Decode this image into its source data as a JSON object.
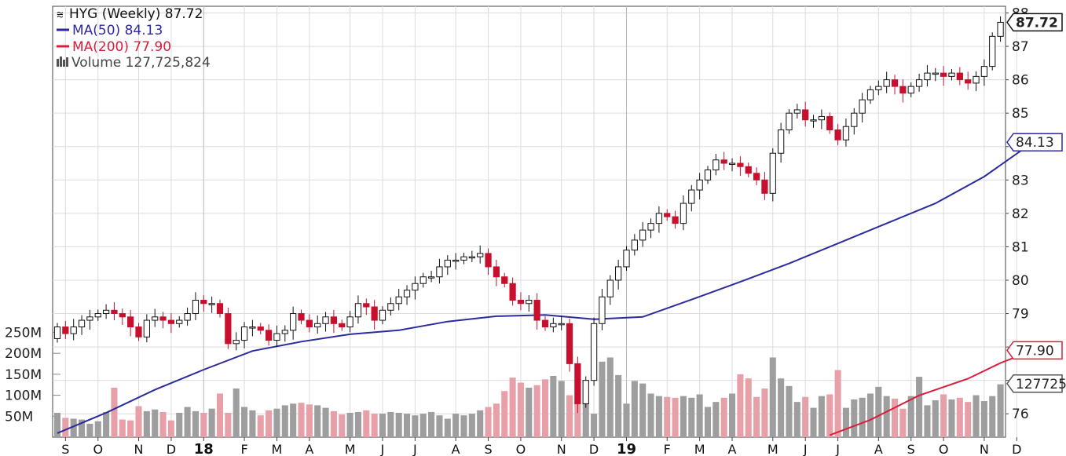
{
  "chart_data": {
    "type": "candlestick",
    "ticker": "HYG",
    "interval_label": "HYG (Weekly)",
    "last_price": 87.72,
    "last_price_label": "87.72",
    "grid": true,
    "price_axis": {
      "side": "right",
      "range": [
        75.3,
        88.2
      ],
      "ticks": [
        76,
        77,
        78,
        79,
        80,
        81,
        82,
        83,
        84,
        85,
        86,
        87,
        88
      ]
    },
    "volume_axis": {
      "side": "left",
      "range": [
        0,
        350000000
      ],
      "ticks": [
        {
          "value": 50000000,
          "label": "50M"
        },
        {
          "value": 100000000,
          "label": "100M"
        },
        {
          "value": 150000000,
          "label": "150M"
        },
        {
          "value": 200000000,
          "label": "200M"
        },
        {
          "value": 250000000,
          "label": "250M"
        }
      ]
    },
    "x_labels": [
      {
        "index": 1,
        "label": "S",
        "bold": false
      },
      {
        "index": 5,
        "label": "O",
        "bold": false
      },
      {
        "index": 10,
        "label": "N",
        "bold": false
      },
      {
        "index": 14,
        "label": "D",
        "bold": false
      },
      {
        "index": 18,
        "label": "18",
        "bold": true
      },
      {
        "index": 23,
        "label": "F",
        "bold": false
      },
      {
        "index": 27,
        "label": "M",
        "bold": false
      },
      {
        "index": 31,
        "label": "A",
        "bold": false
      },
      {
        "index": 36,
        "label": "M",
        "bold": false
      },
      {
        "index": 40,
        "label": "J",
        "bold": false
      },
      {
        "index": 44,
        "label": "J",
        "bold": false
      },
      {
        "index": 49,
        "label": "A",
        "bold": false
      },
      {
        "index": 53,
        "label": "S",
        "bold": false
      },
      {
        "index": 57,
        "label": "O",
        "bold": false
      },
      {
        "index": 62,
        "label": "N",
        "bold": false
      },
      {
        "index": 66,
        "label": "D",
        "bold": false
      },
      {
        "index": 70,
        "label": "19",
        "bold": true
      },
      {
        "index": 75,
        "label": "F",
        "bold": false
      },
      {
        "index": 79,
        "label": "M",
        "bold": false
      },
      {
        "index": 83,
        "label": "A",
        "bold": false
      },
      {
        "index": 88,
        "label": "M",
        "bold": false
      },
      {
        "index": 92,
        "label": "J",
        "bold": false
      },
      {
        "index": 96,
        "label": "J",
        "bold": false
      },
      {
        "index": 101,
        "label": "A",
        "bold": false
      },
      {
        "index": 105,
        "label": "S",
        "bold": false
      },
      {
        "index": 109,
        "label": "O",
        "bold": false
      },
      {
        "index": 114,
        "label": "N",
        "bold": false
      },
      {
        "index": 118,
        "label": "D",
        "bold": false
      }
    ],
    "close": [
      78.6,
      78.4,
      78.6,
      78.8,
      78.9,
      79.0,
      79.1,
      79.0,
      78.9,
      78.6,
      78.3,
      78.8,
      78.9,
      78.8,
      78.7,
      78.8,
      79.0,
      79.4,
      79.3,
      79.3,
      79.0,
      78.1,
      78.2,
      78.6,
      78.6,
      78.5,
      78.2,
      78.4,
      78.5,
      79.0,
      78.8,
      78.6,
      78.7,
      78.9,
      78.7,
      78.6,
      78.9,
      79.3,
      79.2,
      78.8,
      79.1,
      79.3,
      79.5,
      79.7,
      79.9,
      80.1,
      80.1,
      80.4,
      80.6,
      80.6,
      80.7,
      80.7,
      80.8,
      80.4,
      80.1,
      79.9,
      79.4,
      79.3,
      79.4,
      78.8,
      78.6,
      78.7,
      78.7,
      77.5,
      76.3,
      77.0,
      78.7,
      79.5,
      80.0,
      80.4,
      80.9,
      81.2,
      81.5,
      81.7,
      82.0,
      81.9,
      81.7,
      82.3,
      82.7,
      83.0,
      83.3,
      83.6,
      83.5,
      83.5,
      83.4,
      83.2,
      83.0,
      82.6,
      83.8,
      84.5,
      85.0,
      85.1,
      84.8,
      84.8,
      84.9,
      84.5,
      84.2,
      84.6,
      85.0,
      85.4,
      85.7,
      85.8,
      86.0,
      85.8,
      85.6,
      85.8,
      86.0,
      86.2,
      86.2,
      86.1,
      86.2,
      86.0,
      85.9,
      86.1,
      86.4,
      87.3,
      87.72
    ],
    "volume": [
      58,
      46,
      44,
      42,
      32,
      38,
      60,
      118,
      42,
      40,
      74,
      62,
      66,
      60,
      40,
      58,
      72,
      62,
      58,
      68,
      104,
      58,
      116,
      72,
      64,
      52,
      64,
      68,
      76,
      80,
      82,
      78,
      76,
      70,
      62,
      54,
      58,
      60,
      64,
      56,
      56,
      60,
      58,
      56,
      52,
      56,
      60,
      52,
      44,
      56,
      52,
      56,
      64,
      72,
      80,
      110,
      142,
      130,
      118,
      124,
      138,
      146,
      134,
      100,
      96,
      110,
      56,
      180,
      190,
      148,
      80,
      134,
      128,
      104,
      98,
      96,
      94,
      98,
      94,
      102,
      72,
      84,
      94,
      104,
      150,
      140,
      96,
      116,
      190,
      140,
      122,
      84,
      96,
      70,
      98,
      102,
      160,
      70,
      90,
      94,
      104,
      120,
      98,
      92,
      68,
      98,
      144,
      76,
      88,
      102,
      90,
      94,
      84,
      100,
      86,
      98,
      126
    ],
    "ma50": {
      "label": "MA(50) 84.13",
      "value": 84.13,
      "color": "#2b2b9e",
      "points": [
        [
          0,
          75.42
        ],
        [
          6,
          76.03
        ],
        [
          12,
          76.72
        ],
        [
          18,
          77.32
        ],
        [
          24,
          77.88
        ],
        [
          30,
          78.16
        ],
        [
          36,
          78.38
        ],
        [
          42,
          78.5
        ],
        [
          48,
          78.76
        ],
        [
          54,
          78.92
        ],
        [
          60,
          78.96
        ],
        [
          66,
          78.83
        ],
        [
          72,
          78.9
        ],
        [
          78,
          79.42
        ],
        [
          84,
          79.95
        ],
        [
          90,
          80.5
        ],
        [
          96,
          81.1
        ],
        [
          102,
          81.7
        ],
        [
          108,
          82.3
        ],
        [
          114,
          83.1
        ],
        [
          120,
          84.13
        ]
      ]
    },
    "ma200": {
      "label": "MA(200) 77.90",
      "value": 77.9,
      "color": "#d81e3c",
      "points": [
        [
          95,
          75.36
        ],
        [
          100,
          75.82
        ],
        [
          106,
          76.55
        ],
        [
          112,
          77.05
        ],
        [
          116,
          77.52
        ],
        [
          120,
          77.9
        ]
      ]
    },
    "volume_label": "Volume 127,725,824",
    "volume_tag": "127725",
    "colors": {
      "up_fill": "#ffffff",
      "up_stroke": "#111111",
      "down_fill": "#c8102e",
      "volume_up": "#9e9e9e",
      "volume_down": "#e8a0a8",
      "grid": "#dcdcdc",
      "axis": "#444444"
    }
  },
  "legend": {
    "title": "HYG (Weekly) 87.72",
    "ma50": "MA(50) 84.13",
    "ma200": "MA(200) 77.90",
    "volume": "Volume 127,725,824"
  },
  "tags": {
    "price": "87.72",
    "ma50": "84.13",
    "ma200": "77.90",
    "volume": "127725"
  }
}
